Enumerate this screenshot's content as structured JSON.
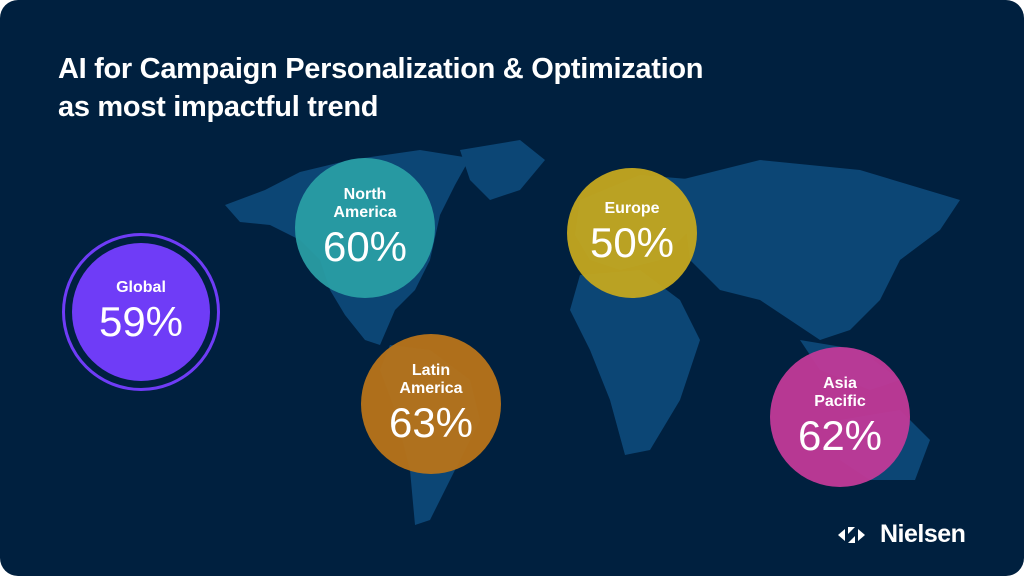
{
  "title_lines": [
    "AI for Campaign Personalization & Optimization",
    "as most impactful trend"
  ],
  "brand": "Nielsen",
  "chart_data": {
    "type": "bubble-map",
    "title": "AI for Campaign Personalization & Optimization as most impactful trend",
    "unit": "%",
    "regions": [
      {
        "name": "Global",
        "label_lines": [
          "Global"
        ],
        "value": 59,
        "display": "59%",
        "color": "#6f3cf7"
      },
      {
        "name": "North America",
        "label_lines": [
          "North",
          "America"
        ],
        "value": 60,
        "display": "60%",
        "color": "#2a9fa6"
      },
      {
        "name": "Europe",
        "label_lines": [
          "Europe"
        ],
        "value": 50,
        "display": "50%",
        "color": "#c4a81f"
      },
      {
        "name": "Latin America",
        "label_lines": [
          "Latin",
          "America"
        ],
        "value": 63,
        "display": "63%",
        "color": "#b87419"
      },
      {
        "name": "Asia Pacific",
        "label_lines": [
          "Asia",
          "Pacific"
        ],
        "value": 62,
        "display": "62%",
        "color": "#c13a98"
      }
    ]
  }
}
